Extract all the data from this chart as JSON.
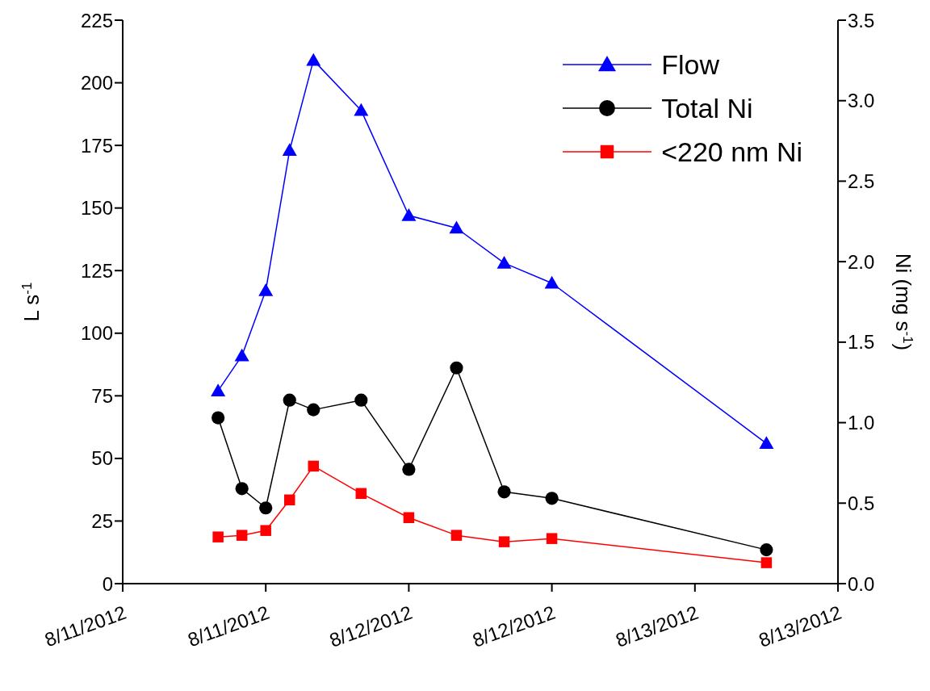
{
  "chart_data": {
    "type": "line",
    "xlabel": null,
    "ylabel": "L s$^{-1}$",
    "y2label": "Ni (mg s$^{-1}$)",
    "x": [
      "2012-08-11T08:00",
      "2012-08-11T10:00",
      "2012-08-11T12:00",
      "2012-08-11T14:00",
      "2012-08-11T16:00",
      "2012-08-11T20:00",
      "2012-08-12T00:00",
      "2012-08-12T04:00",
      "2012-08-12T08:00",
      "2012-08-12T12:00",
      "2012-08-13T06:00"
    ],
    "series": [
      {
        "name": "Flow",
        "color": "#0000ff",
        "marker": "triangle",
        "values": [
          77,
          91,
          117,
          173,
          209,
          189,
          147,
          142,
          128,
          120,
          56
        ]
      },
      {
        "name": "Total Ni",
        "color": "#000000",
        "marker": "circle",
        "axis": "y2",
        "values": [
          1.03,
          0.59,
          0.47,
          1.14,
          1.08,
          1.14,
          0.71,
          1.34,
          0.57,
          0.53,
          0.21
        ]
      },
      {
        "name": "<220 nm Ni",
        "color": "#ff0000",
        "marker": "square",
        "axis": "y2",
        "values": [
          0.29,
          0.3,
          0.33,
          0.52,
          0.73,
          0.56,
          0.41,
          0.3,
          0.26,
          0.28,
          0.13
        ]
      }
    ],
    "xlim": [
      "2012-08-11T00:00",
      "2012-08-13T12:00"
    ],
    "xticks": [
      {
        "value": "2012-08-11T00:00",
        "label": "8/11/2012"
      },
      {
        "value": "2012-08-11T12:00",
        "label": "8/11/2012"
      },
      {
        "value": "2012-08-12T00:00",
        "label": "8/12/2012"
      },
      {
        "value": "2012-08-12T12:00",
        "label": "8/12/2012"
      },
      {
        "value": "2012-08-13T00:00",
        "label": "8/13/2012"
      },
      {
        "value": "2012-08-13T12:00",
        "label": "8/13/2012"
      }
    ],
    "ylim": [
      0,
      225
    ],
    "yticks": [
      0,
      25,
      50,
      75,
      100,
      125,
      150,
      175,
      200,
      225
    ],
    "y2lim": [
      0,
      3.5
    ],
    "y2ticks": [
      {
        "value": 0,
        "label": "0.0"
      },
      {
        "value": 0.5,
        "label": "0.5"
      },
      {
        "value": 1,
        "label": "1.0"
      },
      {
        "value": 1.5,
        "label": "1.5"
      },
      {
        "value": 2,
        "label": "2.0"
      },
      {
        "value": 2.5,
        "label": "2.5"
      },
      {
        "value": 3,
        "label": "3.0"
      },
      {
        "value": 3.5,
        "label": "3.5"
      }
    ],
    "grid": false,
    "legend": "top right",
    "line_style": "solid"
  }
}
